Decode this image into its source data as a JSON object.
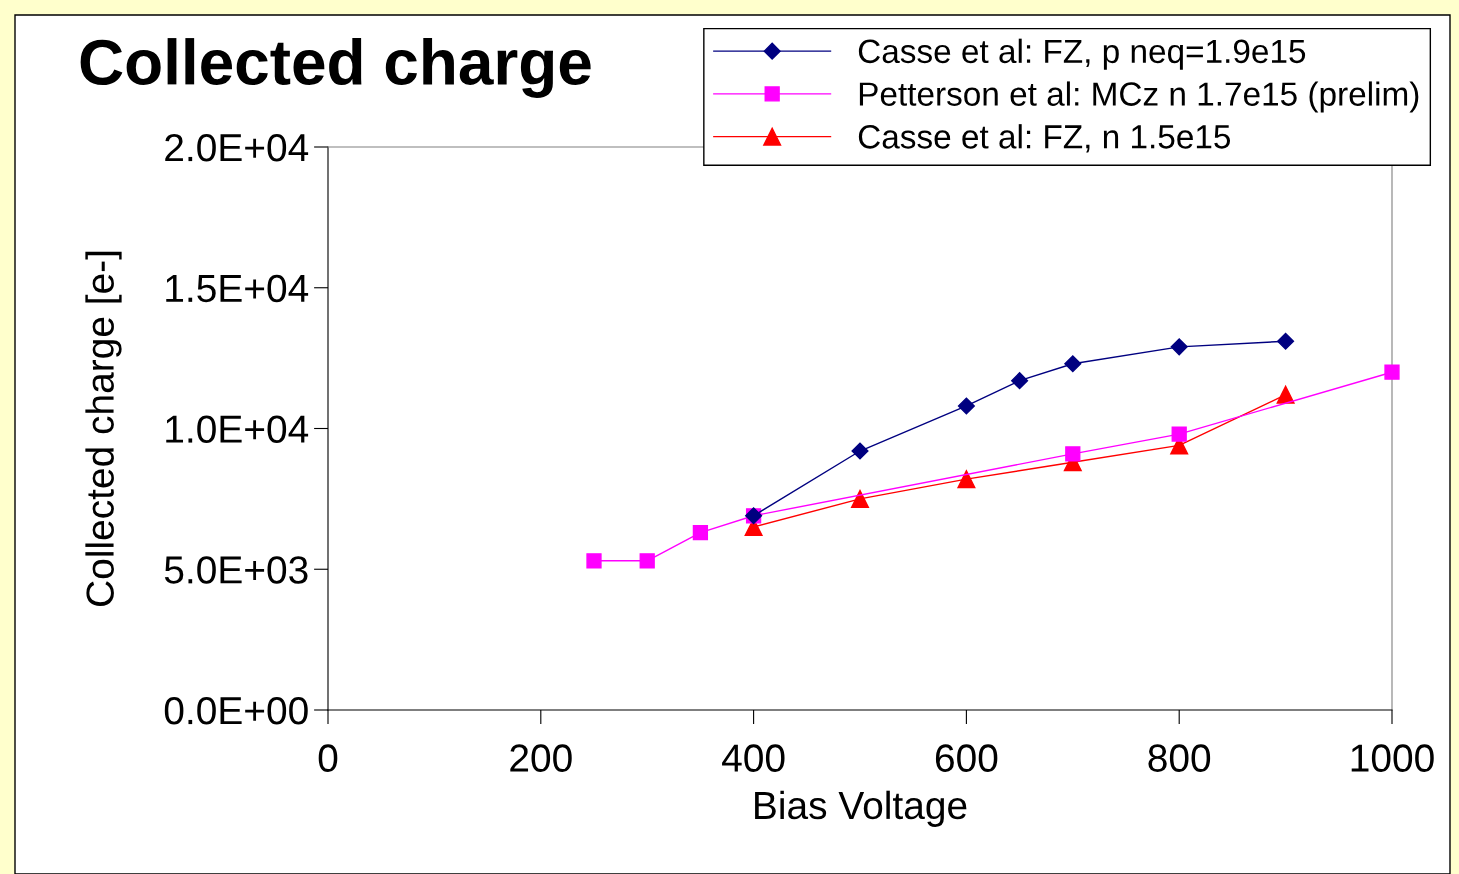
{
  "chart_data": {
    "type": "line",
    "title": "Collected charge",
    "xlabel": "Bias Voltage",
    "ylabel": "Collected charge [e-]",
    "xlim": [
      0,
      1000
    ],
    "xticks": [
      0,
      200,
      400,
      600,
      800,
      1000
    ],
    "ylim": [
      0,
      20000
    ],
    "yticks": [
      {
        "value": 0,
        "label": "0.0E+00"
      },
      {
        "value": 5000,
        "label": "5.0E+03"
      },
      {
        "value": 10000,
        "label": "1.0E+04"
      },
      {
        "value": 15000,
        "label": "1.5E+04"
      },
      {
        "value": 20000,
        "label": "2.0E+04"
      }
    ],
    "grid": false,
    "legend": "top right",
    "line_style": "solid",
    "series": [
      {
        "name": "Casse et al: FZ, p neq=1.9e15",
        "color": "#000080",
        "marker": "diamond",
        "x": [
          400,
          500,
          600,
          650,
          700,
          800,
          900
        ],
        "values": [
          6900,
          9200,
          10800,
          11700,
          12300,
          12900,
          13100
        ]
      },
      {
        "name": "Petterson et al: MCz n 1.7e15 (prelim)",
        "color": "#ff00ff",
        "marker": "square",
        "x": [
          250,
          300,
          350,
          400,
          700,
          800,
          1000
        ],
        "values": [
          5300,
          5300,
          6300,
          6900,
          9100,
          9800,
          12000
        ]
      },
      {
        "name": "Casse et al: FZ, n 1.5e15",
        "color": "#ff0000",
        "marker": "triangle",
        "x": [
          400,
          500,
          600,
          700,
          800,
          900
        ],
        "values": [
          6500,
          7500,
          8200,
          8800,
          9400,
          11200
        ]
      }
    ]
  }
}
